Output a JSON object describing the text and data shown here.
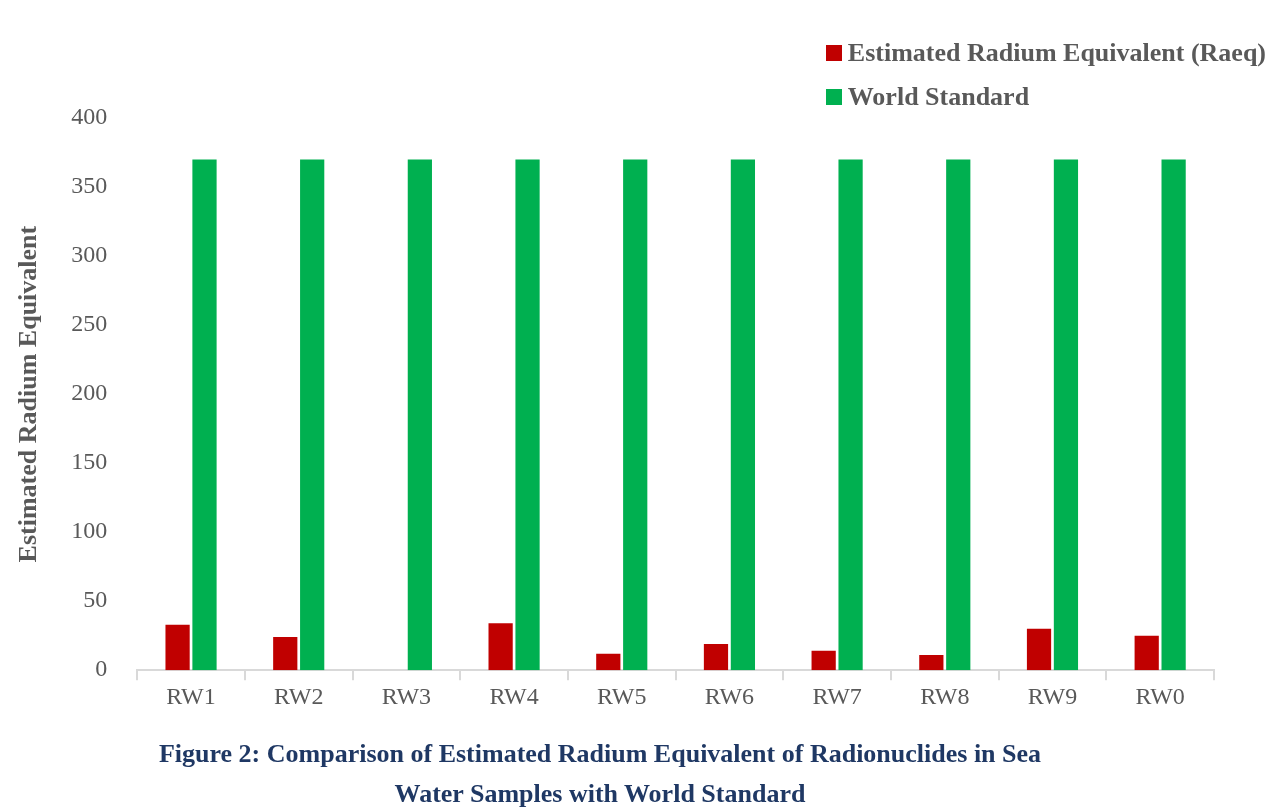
{
  "chart_data": {
    "type": "bar",
    "title": "Figure 2: Comparison of Estimated Radium Equivalent of Radionuclides in Sea Water Samples with World Standard",
    "ylabel": "Estimated Radium Equivalent",
    "categories": [
      "RW1",
      "RW2",
      "RW3",
      "RW4",
      "RW5",
      "RW6",
      "RW7",
      "RW8",
      "RW9",
      "RW0"
    ],
    "series": [
      {
        "name": "Estimated Radium Equivalent (Raeq)",
        "color": "#c00000",
        "values": [
          33,
          24,
          0,
          34,
          12,
          19,
          14,
          11,
          30,
          25
        ]
      },
      {
        "name": "World Standard",
        "color": "#00b050",
        "values": [
          370,
          370,
          370,
          370,
          370,
          370,
          370,
          370,
          370,
          370
        ]
      }
    ],
    "ylim": [
      0,
      400
    ],
    "yticks": [
      0,
      50,
      100,
      150,
      200,
      250,
      300,
      350,
      400
    ],
    "grid": false,
    "legend": "top right"
  }
}
